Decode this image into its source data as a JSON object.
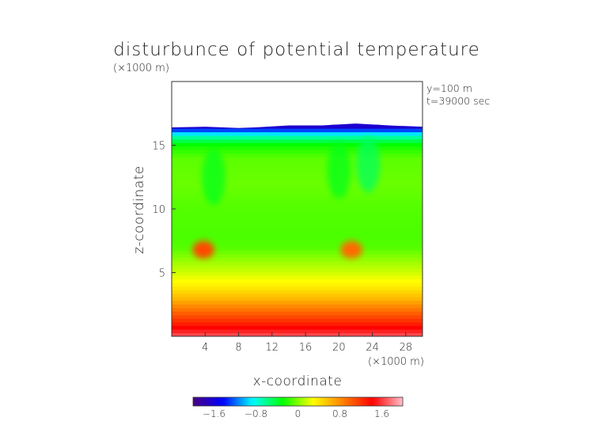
{
  "chart_data": {
    "type": "heatmap",
    "title": "disturbunce of potential temperature",
    "xlabel": "x-coordinate",
    "ylabel": "z-coordinate",
    "x_unit": "(×1000 m)",
    "y_unit": "(×1000 m)",
    "annotations": [
      "y=100 m",
      "t=39000 sec"
    ],
    "xlim": [
      0,
      30
    ],
    "ylim": [
      0,
      20
    ],
    "x_ticks": [
      4,
      8,
      12,
      16,
      20,
      24,
      28
    ],
    "x_tick_labels": [
      "4",
      "8",
      "12",
      "16",
      "20",
      "24",
      "28"
    ],
    "y_ticks": [
      5,
      10,
      15
    ],
    "y_tick_labels": [
      "5",
      "10",
      "15"
    ],
    "top_boundary": {
      "x": [
        0,
        4,
        8,
        10,
        14,
        18,
        22,
        26,
        30
      ],
      "z": [
        16.4,
        16.45,
        16.35,
        16.4,
        16.55,
        16.55,
        16.7,
        16.55,
        16.45
      ]
    },
    "vertical_profile": {
      "z": [
        0,
        1,
        2,
        3,
        4,
        5,
        6,
        7,
        8,
        10,
        12,
        14,
        15,
        15.6,
        16.1,
        16.4
      ],
      "value": [
        1.7,
        1.3,
        0.95,
        0.6,
        0.35,
        0.18,
        0.05,
        -0.1,
        -0.12,
        -0.1,
        -0.05,
        -0.08,
        -0.25,
        -0.6,
        -1.1,
        -1.65
      ]
    },
    "warm_anomalies": [
      {
        "x": 3.8,
        "z": 6.8,
        "value": 1.1
      },
      {
        "x": 21.5,
        "z": 6.8,
        "value": 0.95
      }
    ],
    "cool_anomalies": [
      {
        "x": 5.0,
        "z": 12.5,
        "value": -0.35
      },
      {
        "x": 20.0,
        "z": 13.0,
        "value": -0.35
      },
      {
        "x": 23.5,
        "z": 13.5,
        "value": -0.5
      }
    ],
    "colorbar": {
      "range": [
        -2.0,
        2.0
      ],
      "tick_values": [
        -1.6,
        -0.8,
        0,
        0.8,
        1.6
      ],
      "tick_labels": [
        "−1.6",
        "−0.8",
        "0",
        "0.8",
        "1.6"
      ]
    },
    "colormap": [
      "#4b0082",
      "#0000ff",
      "#00ffff",
      "#00ff00",
      "#ffff00",
      "#ff8000",
      "#ff0000",
      "#ffc0cb"
    ]
  }
}
